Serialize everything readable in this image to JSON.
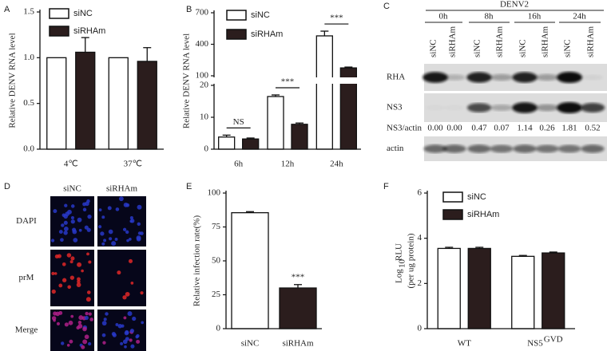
{
  "chart_data": [
    {
      "type": "bar",
      "panel": "A",
      "ylabel": "Relative DENV RNA level",
      "categories": [
        "4℃",
        "37℃"
      ],
      "series": [
        {
          "name": "siNC",
          "color": "#ffffff",
          "values": [
            1.0,
            1.0
          ]
        },
        {
          "name": "siRHAm",
          "color": "#2b1d1d",
          "values": [
            1.06,
            0.96
          ],
          "errors": [
            0.16,
            0.15
          ]
        }
      ],
      "ylim": [
        0,
        1.5
      ],
      "yticks": [
        {
          "value": 0,
          "label": "0.0"
        },
        0.5,
        {
          "value": 1,
          "label": "1.0"
        },
        1.5
      ]
    },
    {
      "type": "bar",
      "panel": "B",
      "ylabel": "Relative DENV RNA level",
      "categories": [
        "6h",
        "12h",
        "24h"
      ],
      "series": [
        {
          "name": "siNC",
          "color": "#ffffff",
          "values": [
            3.8,
            16.5,
            480
          ],
          "errors": [
            0.6,
            0.5,
            45
          ]
        },
        {
          "name": "siRHAm",
          "color": "#2b1d1d",
          "values": [
            3.2,
            7.8,
            175
          ],
          "errors": [
            0.3,
            0.4,
            8
          ]
        }
      ],
      "ylim_segments": [
        [
          0,
          20
        ],
        [
          100,
          700
        ]
      ],
      "yticks": [
        0,
        10,
        20,
        100,
        400,
        700
      ],
      "annotations": [
        "NS",
        "***",
        "***"
      ]
    },
    {
      "type": "bar",
      "panel": "E",
      "ylabel": "Relative infection rate(%)",
      "categories": [
        "siNC",
        "siRHAm"
      ],
      "values": [
        85.5,
        30
      ],
      "errors": [
        0.8,
        2.5
      ],
      "colors": [
        "#ffffff",
        "#2b1d1d"
      ],
      "ylim": [
        0,
        100
      ],
      "yticks": [
        0,
        25,
        50,
        75,
        100
      ],
      "annotations": [
        null,
        "***"
      ]
    },
    {
      "type": "bar",
      "panel": "F",
      "ylabel": {
        "main": "Log",
        "sub": "10",
        "rest": "RLU"
      },
      "ylabel_note": "(per ug protein)",
      "categories": [
        "WT",
        "NS5"
      ],
      "category_sup": [
        null,
        "GVD"
      ],
      "series": [
        {
          "name": "siNC",
          "color": "#ffffff",
          "values": [
            3.55,
            3.2
          ],
          "errors": [
            0.05,
            0.04
          ]
        },
        {
          "name": "siRHAm",
          "color": "#2b1d1d",
          "values": [
            3.55,
            3.35
          ],
          "errors": [
            0.05,
            0.04
          ]
        }
      ],
      "ylim": [
        0,
        6
      ],
      "yticks": [
        0,
        2,
        4,
        6
      ]
    }
  ],
  "blot": {
    "panel": "C",
    "title": "DENV2",
    "timepoints": [
      "0h",
      "8h",
      "16h",
      "24h"
    ],
    "lanes": [
      "siNC",
      "siRHAm",
      "siNC",
      "siRHAm",
      "siNC",
      "siRHAm",
      "siNC",
      "siRHAm"
    ],
    "rows": [
      "RHA",
      "NS3",
      "actin"
    ],
    "ratio_label": "NS3/actin",
    "ratios": [
      "0.00",
      "0.00",
      "0.47",
      "0.07",
      "1.14",
      "0.26",
      "1.81",
      "0.52"
    ]
  },
  "micrographs": {
    "panel": "D",
    "columns": [
      "siNC",
      "siRHAm"
    ],
    "rows": [
      "DAPI",
      "prM",
      "Merge"
    ]
  }
}
